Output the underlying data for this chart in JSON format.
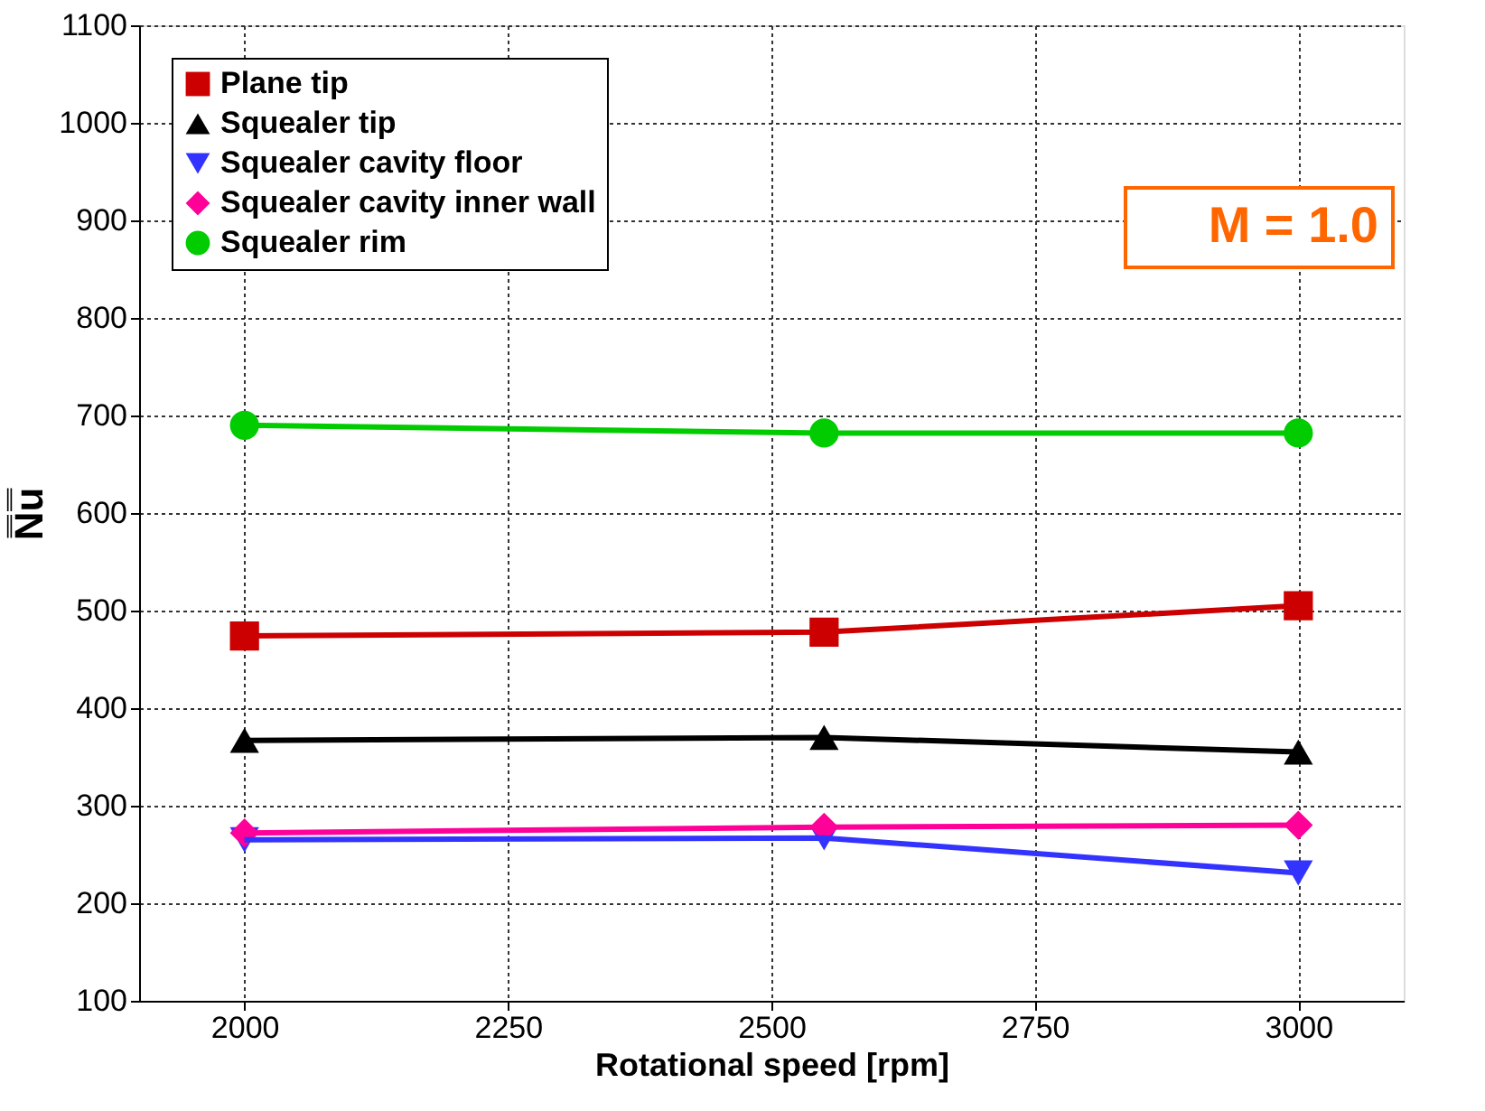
{
  "chart_data": {
    "type": "line",
    "xlabel": "Rotational speed [rpm]",
    "ylabel": "N̿u̿",
    "x": [
      2000,
      2550,
      3000
    ],
    "series": [
      {
        "name": "Plane tip",
        "color": "#cc0000",
        "marker": "square",
        "values": [
          474,
          478,
          505
        ]
      },
      {
        "name": "Squealer tip",
        "color": "#000000",
        "marker": "triangle",
        "values": [
          367,
          370,
          355
        ]
      },
      {
        "name": "Squealer cavity floor",
        "color": "#3333ff",
        "marker": "triangle-down",
        "values": [
          265,
          267,
          231
        ]
      },
      {
        "name": "Squealer cavity inner wall",
        "color": "#ff0099",
        "marker": "diamond",
        "values": [
          272,
          278,
          280
        ]
      },
      {
        "name": "Squealer rim",
        "color": "#00cc00",
        "marker": "circle",
        "values": [
          690,
          682,
          682
        ]
      }
    ],
    "xlim": [
      1900,
      3100
    ],
    "xticks": [
      2000,
      2250,
      2500,
      2750,
      3000
    ],
    "ylim": [
      100,
      1100
    ],
    "yticks": [
      100,
      200,
      300,
      400,
      500,
      600,
      700,
      800,
      900,
      1000,
      1100
    ],
    "grid": true,
    "legend": "top left",
    "line_style": "solid",
    "annotations": [
      "M = 1.0"
    ]
  }
}
